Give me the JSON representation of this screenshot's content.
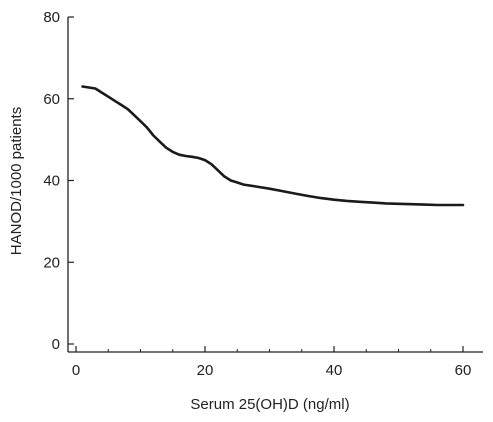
{
  "chart_data": {
    "type": "line",
    "title": "",
    "xlabel": "Serum 25(OH)D (ng/ml)",
    "ylabel": "HANOD/1000 patients",
    "xlim": [
      0,
      62
    ],
    "ylim": [
      0,
      80
    ],
    "x_ticks": [
      0,
      20,
      40,
      60
    ],
    "x_tick_labels": [
      "0",
      "20",
      "40",
      "60"
    ],
    "y_ticks": [
      0,
      20,
      40,
      60,
      80
    ],
    "y_tick_labels": [
      "0",
      "20",
      "40",
      "60",
      "80"
    ],
    "grid": false,
    "legend": "none",
    "line_color": "#1a1a1a",
    "series": [
      {
        "x": [
          1,
          3,
          4,
          5,
          6,
          7,
          8,
          9,
          10,
          11,
          12,
          13,
          14,
          15,
          16,
          17,
          18,
          19,
          20,
          21,
          22,
          23,
          24,
          25,
          26,
          28,
          30,
          32,
          34,
          36,
          38,
          40,
          42,
          44,
          46,
          48,
          50,
          52,
          54,
          56,
          58,
          60
        ],
        "y": [
          63,
          62.5,
          61.5,
          60.5,
          59.5,
          58.5,
          57.5,
          56,
          54.5,
          53,
          51,
          49.5,
          48,
          47,
          46.3,
          46,
          45.8,
          45.5,
          45,
          44,
          42.5,
          41,
          40,
          39.5,
          39,
          38.5,
          38,
          37.4,
          36.8,
          36.2,
          35.7,
          35.3,
          35,
          34.8,
          34.6,
          34.4,
          34.3,
          34.2,
          34.1,
          34,
          34,
          34
        ]
      }
    ]
  }
}
